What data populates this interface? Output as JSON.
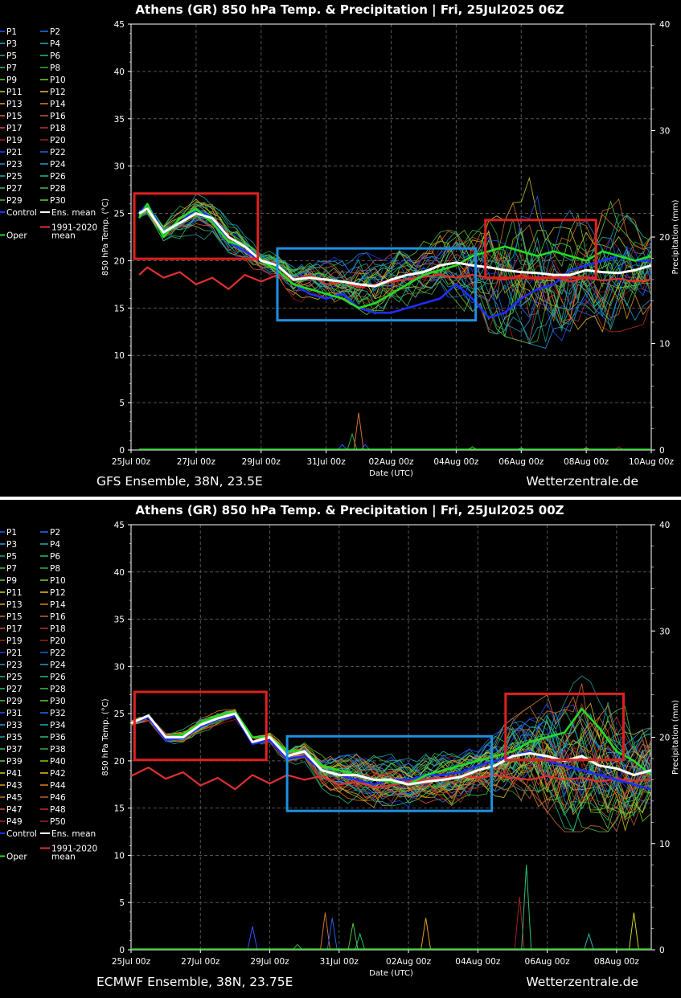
{
  "chart_data": [
    {
      "type": "line",
      "title": "Athens  (GR)  850 hPa Temp. & Precipitation | Fri, 25Jul2025 06Z",
      "xlabel": "Date (UTC)",
      "ylabel": "850 hPa Temp. (°C)",
      "y2label": "Precipitation (mm)",
      "ylim": [
        0,
        45
      ],
      "y2lim": [
        0,
        40
      ],
      "yticks": [
        "0",
        "5",
        "10",
        "15",
        "20",
        "25",
        "30",
        "35",
        "40",
        "45"
      ],
      "y2ticks": [
        "0",
        "10",
        "20",
        "30",
        "40"
      ],
      "xticks": [
        "25Jul 00z",
        "27Jul 00z",
        "29Jul 00z",
        "31Jul 00z",
        "02Aug 00z",
        "04Aug 00z",
        "06Aug 00z",
        "08Aug 00z",
        "10Aug 00z"
      ],
      "footer_left": "GFS Ensemble, 38N, 23.5E",
      "footer_right": "Wetterzentrale.de",
      "members": 30,
      "grid": true,
      "legend_position": "left",
      "legend": [
        "P1",
        "P2",
        "P3",
        "P4",
        "P5",
        "P6",
        "P7",
        "P8",
        "P9",
        "P10",
        "P11",
        "P12",
        "P13",
        "P14",
        "P15",
        "P16",
        "P17",
        "P18",
        "P19",
        "P20",
        "P21",
        "P22",
        "P23",
        "P24",
        "P25",
        "P26",
        "P27",
        "P28",
        "P29",
        "P30",
        "Control",
        "Ens. mean",
        "Oper",
        "1991-2020 mean"
      ],
      "series": [
        {
          "name": "Ens. mean",
          "color": "#ffffff",
          "x_days": [
            0.25,
            0.5,
            1,
            1.5,
            2,
            2.5,
            3,
            3.5,
            4,
            4.5,
            5,
            5.5,
            6,
            6.5,
            7,
            7.5,
            8,
            8.5,
            9,
            9.5,
            10,
            10.5,
            11,
            11.5,
            12,
            12.5,
            13,
            13.5,
            14,
            14.5,
            15,
            15.5,
            16
          ],
          "values": [
            25,
            25.5,
            23,
            24,
            25,
            24.5,
            22.5,
            21.5,
            20,
            19.5,
            18,
            18.2,
            18,
            17.8,
            17.5,
            17.3,
            18,
            18.5,
            18.8,
            19.5,
            19.8,
            19.5,
            19.3,
            19,
            18.8,
            18.7,
            18.5,
            18.5,
            19,
            18.8,
            18.7,
            19,
            19.5
          ]
        },
        {
          "name": "Oper",
          "color": "#22dd22",
          "x_days": [
            0.25,
            0.5,
            1,
            1.5,
            2,
            2.5,
            3,
            3.5,
            4,
            4.5,
            5,
            5.5,
            6,
            6.5,
            7,
            7.5,
            8,
            8.5,
            9,
            9.5,
            10,
            10.5,
            11,
            11.5,
            12,
            12.5,
            13,
            13.5,
            14,
            14.5,
            15,
            15.5,
            16
          ],
          "values": [
            24.5,
            26,
            22.5,
            24.5,
            25.5,
            24,
            22,
            21.5,
            20,
            19,
            17.5,
            17,
            16.5,
            16,
            15,
            15.5,
            16.5,
            17.5,
            18.5,
            19,
            19.5,
            20.5,
            21,
            21.5,
            21,
            20.5,
            21,
            20.5,
            20,
            21,
            20.5,
            20,
            20.5
          ]
        },
        {
          "name": "Control",
          "color": "#1f2dff",
          "x_days": [
            0.25,
            0.5,
            1,
            1.5,
            2,
            2.5,
            3,
            3.5,
            4,
            4.5,
            5,
            5.5,
            6,
            6.5,
            7,
            7.5,
            8,
            8.5,
            9,
            9.5,
            10,
            10.5,
            11,
            11.5,
            12,
            12.5,
            13,
            13.5,
            14,
            14.5,
            15,
            15.5,
            16
          ],
          "values": [
            25,
            26,
            23,
            24,
            25.5,
            24.5,
            22,
            21,
            20,
            19,
            17.5,
            16.5,
            16,
            16.5,
            15,
            14.5,
            14.5,
            15,
            15.5,
            16,
            17.5,
            16,
            14,
            14.5,
            16,
            17,
            17.5,
            19,
            19.5,
            20,
            20.5,
            20,
            20
          ]
        },
        {
          "name": "1991-2020 mean",
          "color": "#e03030",
          "x_days": [
            0.25,
            0.5,
            1,
            1.5,
            2,
            2.5,
            3,
            3.5,
            4,
            4.5,
            5,
            5.5,
            6,
            6.5,
            7,
            7.5,
            8,
            8.5,
            9,
            9.5,
            10,
            10.5,
            11,
            11.5,
            12,
            12.5,
            13,
            13.5,
            14,
            14.5,
            15,
            15.5,
            16
          ],
          "values": [
            18.5,
            19.3,
            18.2,
            18.8,
            17.5,
            18.2,
            17,
            18.5,
            17.8,
            18.5,
            18,
            18.5,
            17.5,
            17.8,
            17.2,
            17.5,
            17.8,
            18,
            18.3,
            18.5,
            18.2,
            18.5,
            18.2,
            18,
            18.5,
            18,
            18.3,
            17.8,
            18.2,
            17.9,
            18.1,
            17.8,
            18
          ]
        },
        {
          "name": "P-spread-high",
          "color": "#c08020",
          "x_days": [
            0.25,
            1,
            2,
            3,
            4,
            5,
            6,
            7,
            8,
            9,
            10,
            11,
            12,
            13,
            14,
            15,
            16
          ],
          "values": [
            25,
            24,
            27,
            24,
            21,
            20,
            20,
            21,
            21,
            22,
            23,
            26,
            29,
            26,
            25,
            26,
            24
          ]
        },
        {
          "name": "P-spread-low",
          "color": "#20a040",
          "x_days": [
            0.25,
            1,
            2,
            3,
            4,
            5,
            6,
            7,
            8,
            9,
            10,
            11,
            12,
            13,
            14,
            15,
            16
          ],
          "values": [
            23.5,
            22,
            23,
            20.5,
            19,
            16,
            15,
            14,
            14.5,
            15.5,
            15,
            13,
            12,
            11,
            13,
            13,
            14
          ]
        }
      ],
      "precip": {
        "x_days": [
          6.5,
          6.8,
          7,
          7.2,
          10.5,
          12,
          14,
          15
        ],
        "values": [
          0.5,
          1.5,
          3.5,
          0.5,
          0.3,
          0.2,
          0.2,
          0.3
        ]
      },
      "highlight_boxes": [
        {
          "color": "#e02020",
          "x_days": [
            0.1,
            3.9
          ],
          "y": [
            20.2,
            27.1
          ]
        },
        {
          "color": "#1e90e0",
          "x_days": [
            4.5,
            10.6
          ],
          "y": [
            13.7,
            21.3
          ]
        },
        {
          "color": "#e02020",
          "x_days": [
            10.9,
            14.3
          ],
          "y": [
            18.2,
            24.3
          ]
        }
      ]
    },
    {
      "type": "line",
      "title": "Athens  (GR)  850 hPa Temp. & Precipitation | Fri, 25Jul2025 00Z",
      "xlabel": "Date (UTC)",
      "ylabel": "850 hPa Temp. (°C)",
      "y2label": "Precipitation (mm)",
      "ylim": [
        0,
        45
      ],
      "y2lim": [
        0,
        40
      ],
      "yticks": [
        "0",
        "5",
        "10",
        "15",
        "20",
        "25",
        "30",
        "35",
        "40",
        "45"
      ],
      "y2ticks": [
        "0",
        "10",
        "20",
        "30",
        "40"
      ],
      "xticks": [
        "25Jul 00z",
        "27Jul 00z",
        "29Jul 00z",
        "31Jul 00z",
        "02Aug 00z",
        "04Aug 00z",
        "06Aug 00z",
        "08Aug 00z"
      ],
      "footer_left": "ECMWF Ensemble, 38N, 23.75E",
      "footer_right": "Wetterzentrale.de",
      "members": 50,
      "grid": true,
      "legend_position": "left",
      "legend": [
        "P1",
        "P2",
        "P3",
        "P4",
        "P5",
        "P6",
        "P7",
        "P8",
        "P9",
        "P10",
        "P11",
        "P12",
        "P13",
        "P14",
        "P15",
        "P16",
        "P17",
        "P18",
        "P19",
        "P20",
        "P21",
        "P22",
        "P23",
        "P24",
        "P25",
        "P26",
        "P27",
        "P28",
        "P29",
        "P30",
        "P31",
        "P32",
        "P33",
        "P34",
        "P35",
        "P36",
        "P37",
        "P38",
        "P39",
        "P40",
        "P41",
        "P42",
        "P43",
        "P44",
        "P45",
        "P46",
        "P47",
        "P48",
        "P49",
        "P50",
        "Control",
        "Ens. mean",
        "Oper",
        "1991-2020 mean"
      ],
      "series": [
        {
          "name": "Ens. mean",
          "color": "#ffffff",
          "x_days": [
            0,
            0.5,
            1,
            1.5,
            2,
            2.5,
            3,
            3.5,
            4,
            4.5,
            5,
            5.5,
            6,
            6.5,
            7,
            7.5,
            8,
            8.5,
            9,
            9.5,
            10,
            10.5,
            11,
            11.5,
            12,
            12.5,
            13,
            13.5,
            14,
            14.5,
            15
          ],
          "values": [
            24,
            24.8,
            22.5,
            22.5,
            23.8,
            24.5,
            25,
            22,
            22.5,
            20.5,
            21,
            19,
            18.5,
            18.5,
            18,
            18,
            17.5,
            17.8,
            18,
            18.3,
            19,
            19.5,
            20.5,
            20.8,
            20.5,
            20,
            20.5,
            19.5,
            19.2,
            18.5,
            19
          ]
        },
        {
          "name": "Oper",
          "color": "#22dd22",
          "x_days": [
            0,
            0.5,
            1,
            1.5,
            2,
            2.5,
            3,
            3.5,
            4,
            4.5,
            5,
            5.5,
            6,
            6.5,
            7,
            7.5,
            8,
            8.5,
            9,
            9.5,
            10,
            10.5,
            11,
            11.5,
            12,
            12.5,
            13,
            13.5,
            14,
            14.5,
            15
          ],
          "values": [
            24,
            24.8,
            22.5,
            22.8,
            24,
            24.8,
            25.2,
            22.5,
            22.5,
            21,
            21,
            19.5,
            19,
            18.5,
            18,
            17.8,
            17.5,
            18.5,
            19,
            19.5,
            20,
            20.5,
            21,
            22,
            22.5,
            23,
            25.5,
            23.5,
            21,
            20,
            18.5
          ]
        },
        {
          "name": "Control",
          "color": "#1f2dff",
          "x_days": [
            0,
            0.5,
            1,
            1.5,
            2,
            2.5,
            3,
            3.5,
            4,
            4.5,
            5,
            5.5,
            6,
            6.5,
            7,
            7.5,
            8,
            8.5,
            9,
            9.5,
            10,
            10.5,
            11,
            11.5,
            12,
            12.5,
            13,
            13.5,
            14,
            14.5,
            15
          ],
          "values": [
            24,
            24.6,
            22.2,
            22.4,
            23.6,
            24.4,
            24.8,
            21.8,
            22.2,
            20.2,
            20.5,
            19,
            18.5,
            18,
            17.5,
            18,
            18,
            18.5,
            18.5,
            18.8,
            19.5,
            20,
            20.5,
            21,
            20,
            19.5,
            19,
            18.5,
            18,
            17.5,
            17
          ]
        },
        {
          "name": "1991-2020 mean",
          "color": "#e03030",
          "x_days": [
            0,
            0.5,
            1,
            1.5,
            2,
            2.5,
            3,
            3.5,
            4,
            4.5,
            5,
            5.5,
            6,
            6.5,
            7,
            7.5,
            8,
            8.5,
            9,
            9.5,
            10,
            10.5,
            11,
            11.5,
            12,
            12.5,
            13,
            13.5,
            14,
            14.5,
            15
          ],
          "values": [
            18.4,
            19.3,
            18.1,
            18.8,
            17.4,
            18.2,
            17,
            18.5,
            17.6,
            18.5,
            18,
            18.4,
            17.5,
            17.8,
            17.2,
            17.4,
            17.8,
            18,
            18.2,
            18.4,
            18.2,
            18.5,
            18.2,
            18,
            18.4,
            18,
            18.2,
            17.8,
            18.1,
            17.9,
            18
          ]
        },
        {
          "name": "P-spread-high",
          "color": "#c08020",
          "x_days": [
            0,
            1,
            2,
            3,
            4,
            5,
            6,
            7,
            8,
            9,
            10,
            11,
            12,
            13,
            14,
            15
          ],
          "values": [
            24.5,
            23,
            24.5,
            25.5,
            22.5,
            21.5,
            20,
            20.5,
            20,
            20.5,
            21,
            24,
            26.5,
            28.5,
            26,
            23
          ]
        },
        {
          "name": "P-spread-low",
          "color": "#20a040",
          "x_days": [
            0,
            1,
            2,
            3,
            4,
            5,
            6,
            7,
            8,
            9,
            10,
            11,
            12,
            13,
            14,
            15
          ],
          "values": [
            23.5,
            22,
            23,
            24.5,
            21.5,
            19.5,
            15.5,
            15,
            15,
            15,
            15.5,
            15,
            13,
            13,
            13,
            12
          ]
        }
      ],
      "precip": {
        "x_days": [
          3.5,
          4.8,
          5.6,
          5.8,
          6.4,
          6.6,
          8.5,
          11.2,
          11.4,
          13.2,
          14.5
        ],
        "values": [
          2.2,
          0.5,
          3.5,
          3,
          2.5,
          1.5,
          3,
          5,
          8,
          1.5,
          3.5
        ]
      },
      "highlight_boxes": [
        {
          "color": "#e02020",
          "x_days": [
            0.1,
            3.9
          ],
          "y": [
            20.1,
            27.3
          ]
        },
        {
          "color": "#1e90e0",
          "x_days": [
            4.5,
            10.4
          ],
          "y": [
            14.7,
            22.6
          ]
        },
        {
          "color": "#e02020",
          "x_days": [
            10.8,
            14.2
          ],
          "y": [
            20.1,
            27.1
          ]
        }
      ]
    }
  ]
}
